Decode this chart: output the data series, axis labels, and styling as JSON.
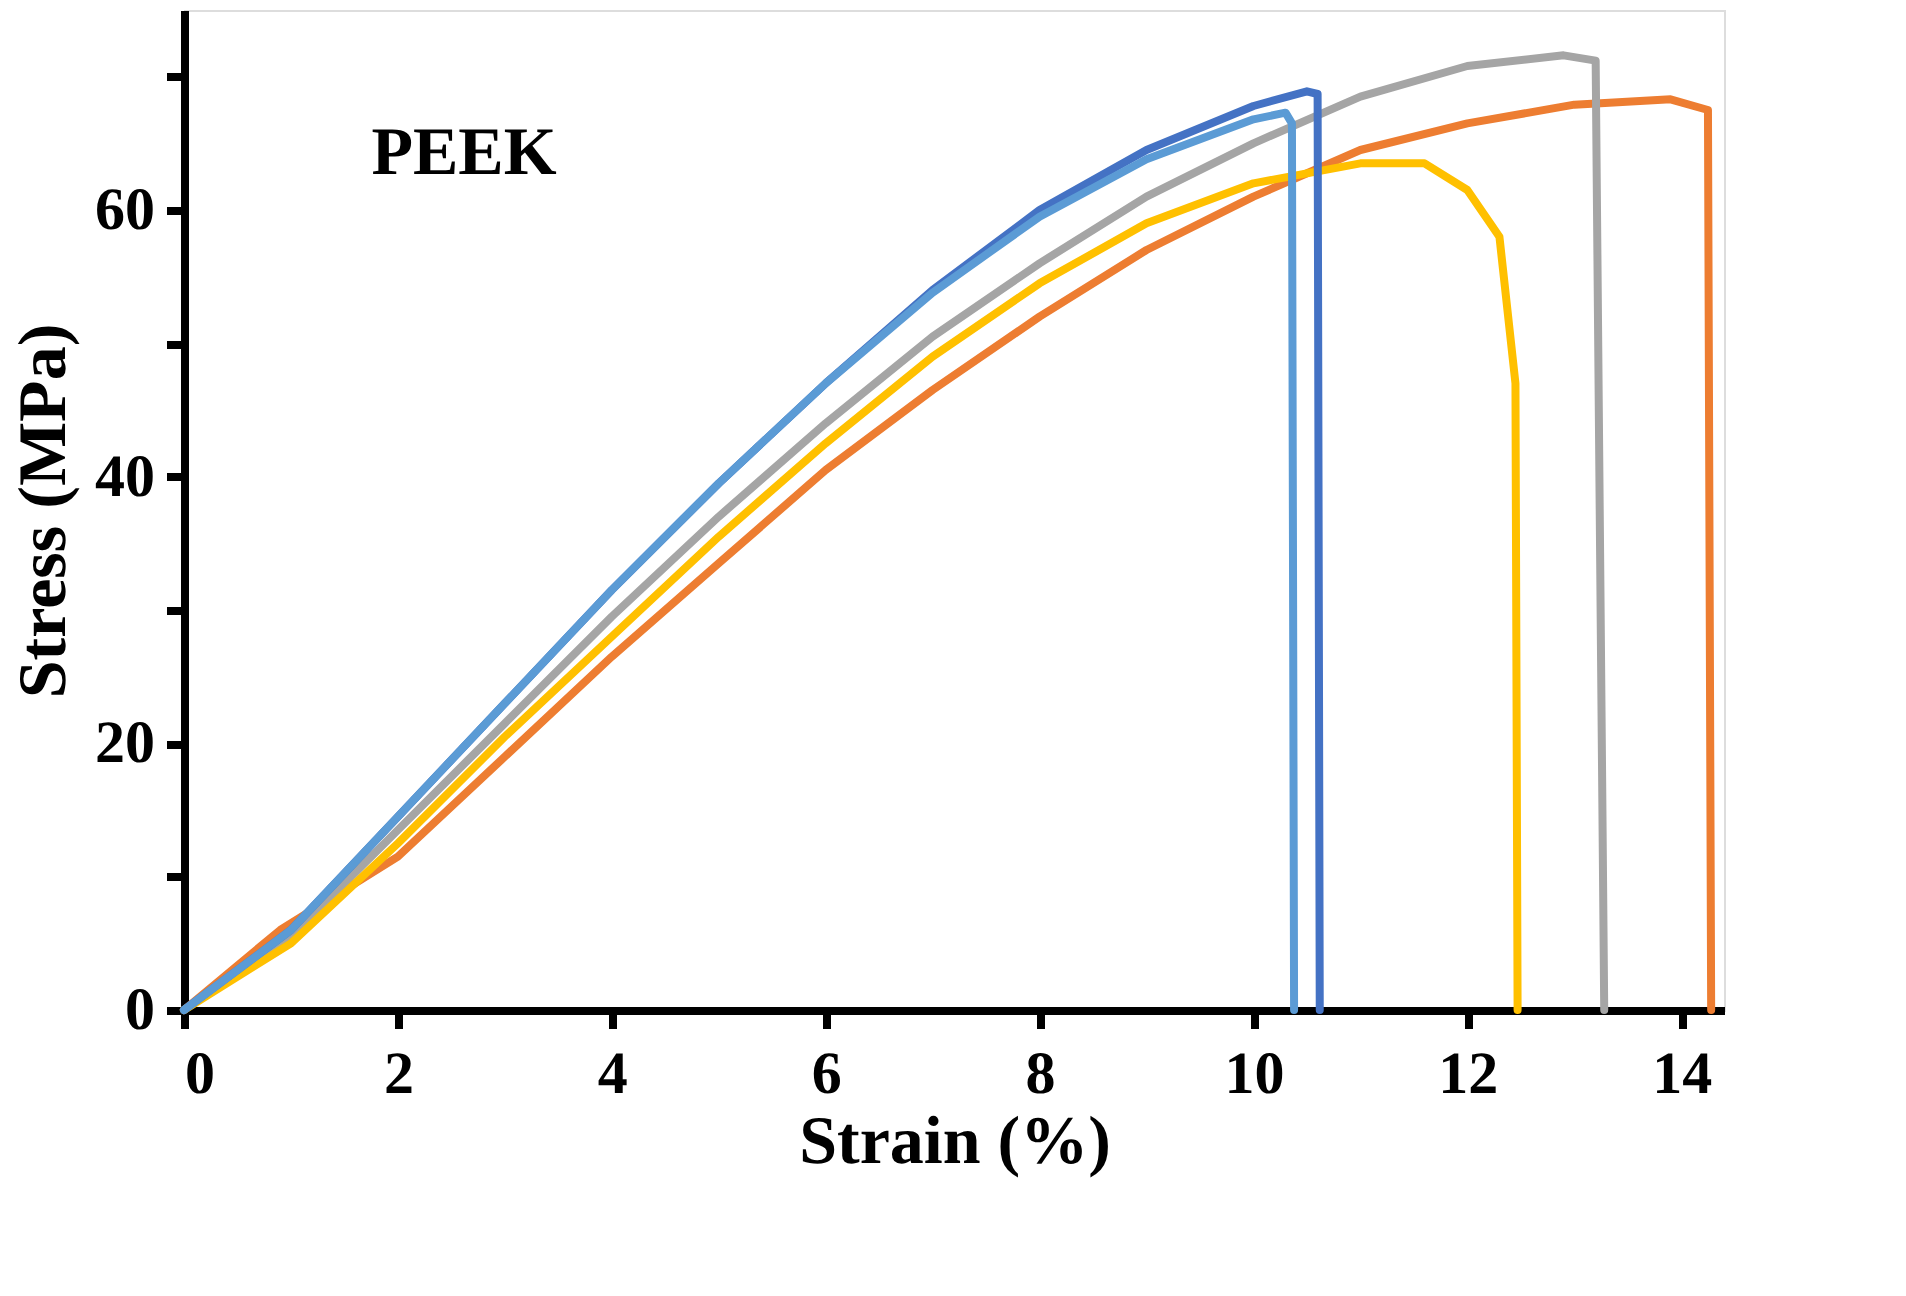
{
  "chart_data": {
    "type": "line",
    "xlabel": "Strain (%)",
    "ylabel": "Stress (MPa)",
    "annotations": [
      "PEEK"
    ],
    "xlim": [
      0,
      14.4
    ],
    "xticks": [
      0,
      2,
      4,
      6,
      8,
      10,
      12,
      14
    ],
    "ylim": [
      0,
      75
    ],
    "yticks": [
      0,
      {
        "value": 10,
        "label": null
      },
      20,
      {
        "value": 30,
        "label": null
      },
      40,
      {
        "value": 50,
        "label": null
      },
      60,
      {
        "value": 70,
        "label": null
      }
    ],
    "grid": false,
    "legend": false,
    "line_style": "solid",
    "marker": "none",
    "series": [
      {
        "color": "#ed7d31",
        "x": [
          0,
          0.9,
          2,
          3,
          4,
          5,
          6,
          7,
          8,
          9,
          10,
          11,
          12,
          13,
          13.9,
          14.25,
          14.28
        ],
        "values": [
          0,
          6,
          11.5,
          19,
          26.5,
          33.5,
          40.5,
          46.5,
          52,
          57,
          61,
          64.5,
          66.5,
          67.9,
          68.3,
          67.5,
          0
        ]
      },
      {
        "color": "#a5a5a5",
        "x": [
          0,
          1,
          2,
          3,
          4,
          5,
          6,
          7,
          8,
          9,
          10,
          11,
          12,
          12.9,
          13.2,
          13.28
        ],
        "values": [
          0,
          5.5,
          13.5,
          21.5,
          29.5,
          37,
          44,
          50.5,
          56,
          61,
          65,
          68.5,
          70.8,
          71.6,
          71.2,
          0
        ]
      },
      {
        "color": "#ffc000",
        "x": [
          0,
          1,
          2,
          3,
          4,
          5,
          6,
          7,
          8,
          9,
          10,
          11,
          11.6,
          12,
          12.3,
          12.45,
          12.47
        ],
        "values": [
          0,
          5,
          12.5,
          20.5,
          28,
          35.5,
          42.5,
          49,
          54.5,
          59,
          62,
          63.5,
          63.5,
          61.5,
          58,
          47,
          0
        ]
      },
      {
        "color": "#4472c4",
        "x": [
          0,
          1,
          2,
          3,
          4,
          5,
          6,
          7,
          8,
          9,
          10,
          10.5,
          10.6,
          10.62
        ],
        "values": [
          0,
          6,
          14.5,
          23,
          31.5,
          39.5,
          47,
          54,
          60,
          64.5,
          67.8,
          68.9,
          68.7,
          0
        ]
      },
      {
        "color": "#5b9bd5",
        "x": [
          0,
          1,
          2,
          3,
          4,
          5,
          6,
          7,
          8,
          9,
          10,
          10.3,
          10.36,
          10.38
        ],
        "values": [
          0,
          6,
          14.5,
          23,
          31.5,
          39.5,
          47,
          53.8,
          59.5,
          63.8,
          66.8,
          67.3,
          66.5,
          0
        ]
      }
    ]
  }
}
